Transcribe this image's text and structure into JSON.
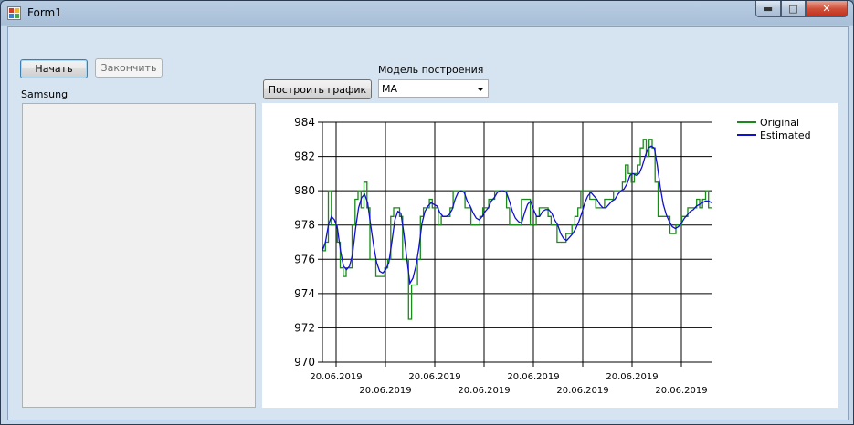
{
  "window": {
    "title": "Form1"
  },
  "controls": {
    "start_label": "Начать",
    "stop_label": "Закончить",
    "list_label": "Samsung",
    "plot_button_label": "Построить график",
    "model_label": "Модель построения",
    "model_value": "MA"
  },
  "colors": {
    "original": "#1a8a1a",
    "estimated": "#1010d0"
  },
  "chart_data": {
    "type": "line",
    "ylim": [
      970,
      984
    ],
    "yticks": [
      "984",
      "982",
      "980",
      "978",
      "976",
      "974",
      "972",
      "970"
    ],
    "xtick_labels": [
      "20.06.2019",
      "20.06.2019",
      "20.06.2019",
      "20.06.2019",
      "20.06.2019",
      "20.06.2019",
      "20.06.2019",
      "20.06.2019"
    ],
    "legend": {
      "position": "top-right",
      "entries": [
        "Original",
        "Estimated"
      ]
    },
    "grid": true,
    "series": [
      {
        "name": "Original",
        "values": [
          976.5,
          977,
          980,
          978,
          978,
          977,
          975.5,
          975,
          975.5,
          975.5,
          978,
          979.5,
          980,
          979,
          980.5,
          979,
          976,
          976,
          975,
          975,
          975,
          975.5,
          976,
          978.5,
          979,
          979,
          978.5,
          976,
          976,
          972.5,
          974.5,
          974.5,
          976,
          978.5,
          979,
          979,
          979.5,
          979,
          979,
          978,
          978.5,
          978.5,
          978.5,
          979,
          980,
          980,
          980,
          980,
          979,
          979,
          978,
          978,
          978,
          978.5,
          979,
          979,
          979.5,
          979.5,
          980,
          980,
          980,
          980,
          979,
          978,
          978,
          978,
          978,
          979.5,
          979.5,
          979.5,
          978,
          978,
          978.5,
          979,
          979,
          979,
          978.5,
          978,
          978,
          977,
          977,
          977,
          977.5,
          977.5,
          978,
          978.5,
          979,
          980,
          980,
          980,
          979.5,
          979.5,
          979,
          979,
          979,
          979.5,
          979.5,
          979.5,
          980,
          980,
          980,
          980.5,
          981.5,
          981,
          980.5,
          981,
          981.5,
          982.5,
          983,
          982,
          983,
          982.5,
          980.5,
          978.5,
          978.5,
          978.5,
          978.5,
          977.5,
          977.5,
          978,
          978,
          978.5,
          978.5,
          979,
          979,
          979,
          979.5,
          979,
          979.5,
          980,
          979,
          979
        ]
      },
      {
        "name": "Estimated",
        "values": [
          976.5,
          977,
          978,
          978.5,
          978.3,
          977.8,
          976.5,
          975.6,
          975.4,
          975.6,
          976.3,
          977.8,
          979,
          979.6,
          979.8,
          979.3,
          978,
          976.8,
          975.8,
          975.3,
          975.2,
          975.4,
          975.8,
          977,
          978.3,
          978.8,
          978.7,
          977.5,
          976,
          974.6,
          974.9,
          975.6,
          976.7,
          978.1,
          978.8,
          979.1,
          979.3,
          979.2,
          979.1,
          978.7,
          978.5,
          978.5,
          978.6,
          978.9,
          979.5,
          979.9,
          980,
          979.9,
          979.4,
          979.1,
          978.7,
          978.4,
          978.3,
          978.5,
          978.8,
          979,
          979.4,
          979.6,
          979.9,
          980,
          980,
          979.9,
          979.4,
          978.8,
          978.4,
          978.2,
          978.1,
          978.7,
          979.2,
          979.4,
          978.9,
          978.5,
          978.5,
          978.8,
          978.9,
          978.9,
          978.7,
          978.3,
          978,
          977.5,
          977.2,
          977.1,
          977.3,
          977.5,
          977.8,
          978.2,
          978.7,
          979.3,
          979.7,
          979.9,
          979.7,
          979.5,
          979.2,
          979,
          979,
          979.2,
          979.4,
          979.5,
          979.8,
          980,
          980.1,
          980.4,
          980.9,
          981,
          980.9,
          981,
          981.4,
          982,
          982.5,
          982.6,
          982.5,
          981.5,
          980.2,
          979.2,
          978.6,
          978.2,
          977.9,
          977.8,
          977.9,
          978.1,
          978.4,
          978.6,
          978.8,
          978.9,
          979.1,
          979.2,
          979.3,
          979.4,
          979.4,
          979.3
        ]
      }
    ]
  }
}
